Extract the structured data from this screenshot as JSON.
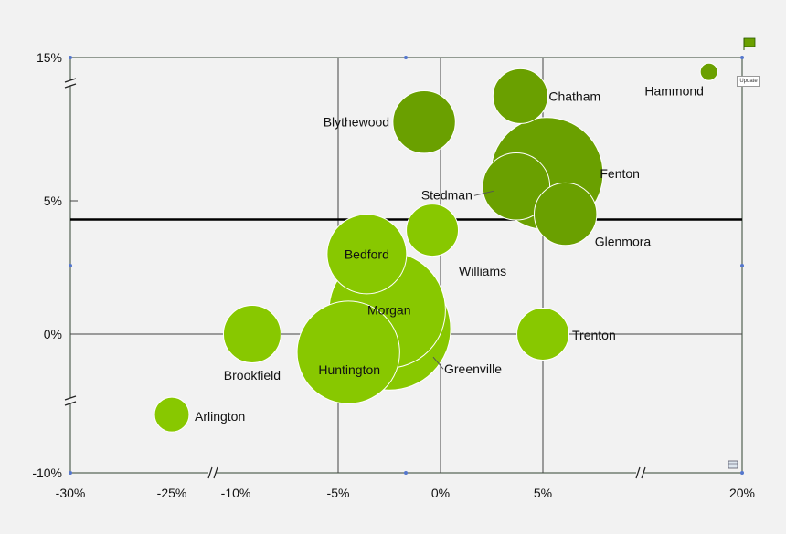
{
  "chart_data": {
    "type": "bubble",
    "x_ticks": [
      "-30%",
      "-25%",
      "-10%",
      "-5%",
      "0%",
      "5%",
      "20%"
    ],
    "y_ticks": [
      "15%",
      "5%",
      "0%",
      "-10%"
    ],
    "reference_line_y": 4.3,
    "grid": true,
    "colors": {
      "light": "#88c800",
      "dark": "#6aa000",
      "reference_line": "#000000",
      "axis": "#334433"
    },
    "points": [
      {
        "name": "Hammond",
        "x": 17.5,
        "y": 14.0,
        "size": 0.1,
        "color": "dark"
      },
      {
        "name": "Chatham",
        "x": 3.9,
        "y": 12.3,
        "size": 1.0,
        "color": "dark"
      },
      {
        "name": "Blythewood",
        "x": -0.8,
        "y": 10.5,
        "size": 1.3,
        "color": "dark"
      },
      {
        "name": "Fenton",
        "x": 5.3,
        "y": 6.9,
        "size": 4.2,
        "color": "dark"
      },
      {
        "name": "Stedman",
        "x": 3.7,
        "y": 6.0,
        "size": 1.5,
        "color": "dark"
      },
      {
        "name": "Glenmora",
        "x": 6.7,
        "y": 4.5,
        "size": 1.3,
        "color": "dark"
      },
      {
        "name": "Williams",
        "x": -0.4,
        "y": 3.9,
        "size": 0.9,
        "color": "light"
      },
      {
        "name": "Bedford",
        "x": -3.6,
        "y": 3.0,
        "size": 2.1,
        "color": "light"
      },
      {
        "name": "Morgan",
        "x": -2.6,
        "y": 0.9,
        "size": 4.5,
        "color": "light"
      },
      {
        "name": "Greenville",
        "x": -2.5,
        "y": 0.2,
        "size": 5.0,
        "color": "light"
      },
      {
        "name": "Trenton",
        "x": 5.0,
        "y": 0.0,
        "size": 0.9,
        "color": "light"
      },
      {
        "name": "Brookfield",
        "x": -9.2,
        "y": 0.0,
        "size": 1.1,
        "color": "light"
      },
      {
        "name": "Huntington",
        "x": -4.5,
        "y": -1.7,
        "size": 3.5,
        "color": "light"
      },
      {
        "name": "Arlington",
        "x": -25.0,
        "y": -7.5,
        "size": 0.4,
        "color": "light"
      }
    ]
  },
  "controls": {
    "update_label": "Update"
  }
}
